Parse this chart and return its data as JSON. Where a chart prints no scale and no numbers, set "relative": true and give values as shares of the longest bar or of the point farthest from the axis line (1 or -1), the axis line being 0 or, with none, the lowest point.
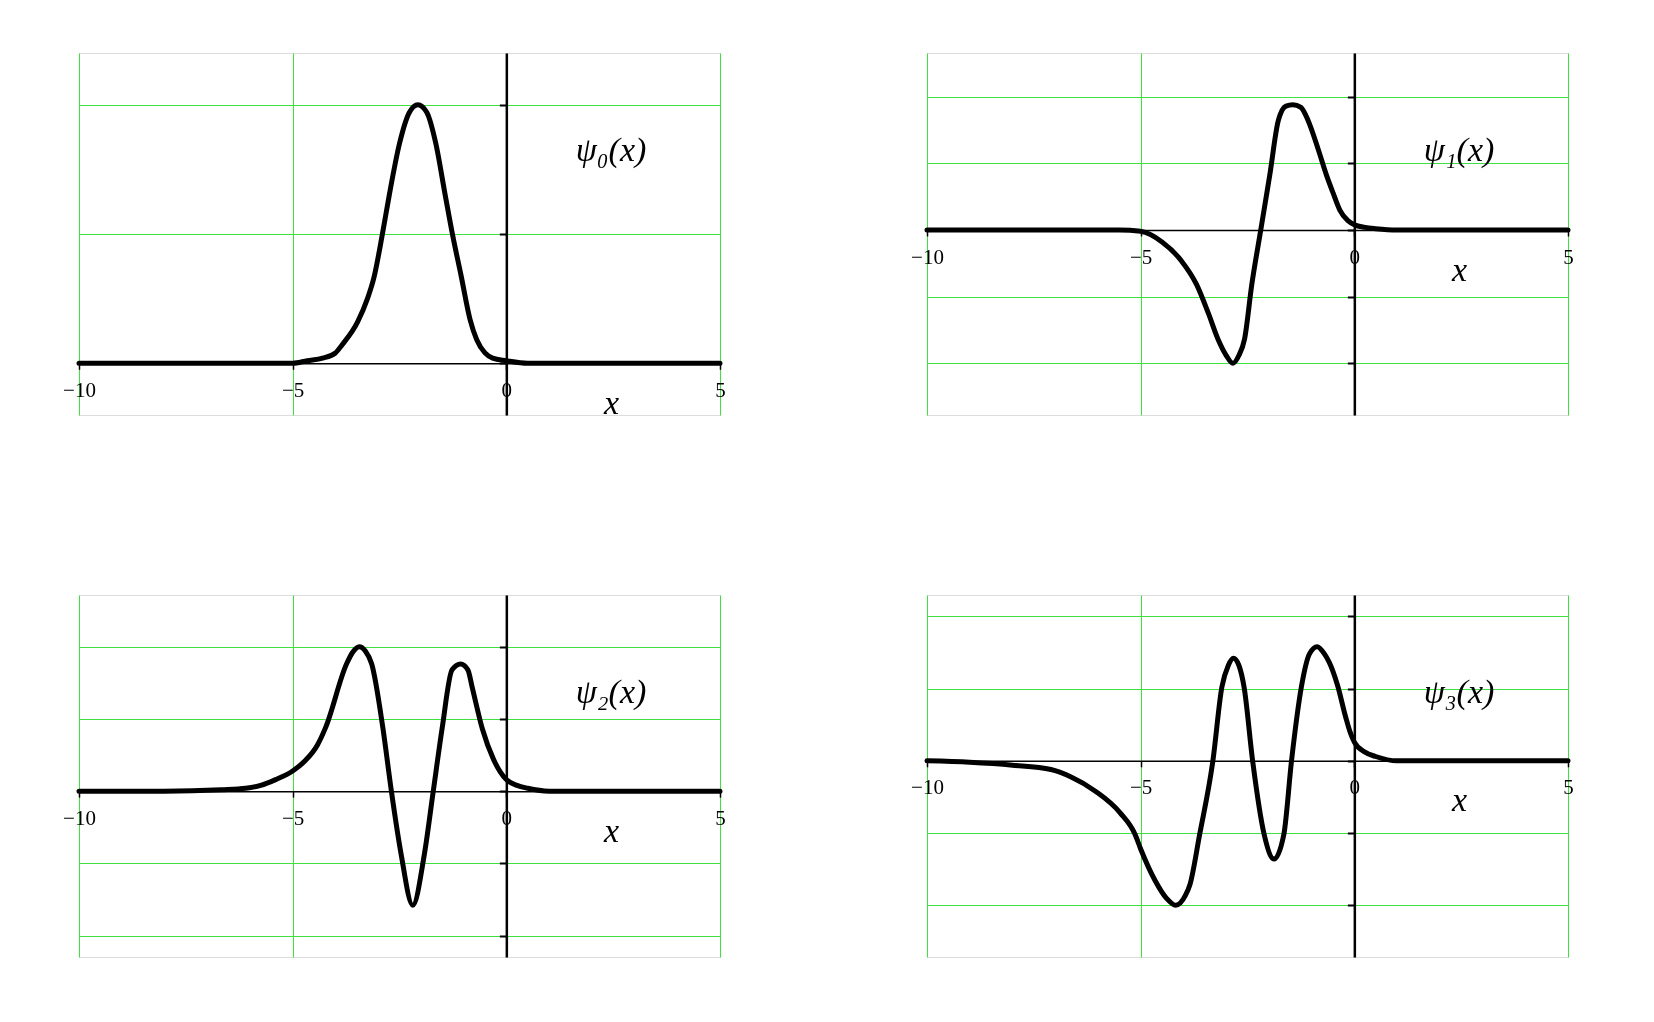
{
  "chart_data": [
    {
      "type": "line",
      "relative": true,
      "xlabel": "x",
      "xlim": [
        -10,
        5
      ],
      "xticks": [
        -10,
        -5,
        0,
        5
      ],
      "grid": true,
      "x": [
        -10,
        -7.5,
        -6,
        -5,
        -4.66,
        -4.3,
        -4,
        -3.85,
        -3.48,
        -3.25,
        -3.1,
        -2.9,
        -2.74,
        -2.5,
        -2.27,
        -2.07,
        -1.86,
        -1.65,
        -1.43,
        -1.25,
        -1.06,
        -0.85,
        -0.69,
        -0.5,
        -0.32,
        0,
        0.5,
        1,
        2.5,
        5
      ],
      "series": [
        {
          "name": "ψ₀(x)",
          "color": "#000000",
          "values": [
            0,
            0,
            0,
            0,
            0.01,
            0.02,
            0.04,
            0.07,
            0.16,
            0.25,
            0.33,
            0.5,
            0.65,
            0.85,
            0.97,
            1,
            0.97,
            0.85,
            0.65,
            0.49,
            0.34,
            0.17,
            0.09,
            0.04,
            0.02,
            0.01,
            0,
            0,
            0,
            0
          ]
        }
      ]
    },
    {
      "type": "line",
      "relative": true,
      "xlabel": "x",
      "xlim": [
        -10,
        5
      ],
      "xticks": [
        -10,
        -5,
        0,
        5
      ],
      "grid": true,
      "x": [
        -10,
        -7.5,
        -6,
        -5.5,
        -5,
        -4.5,
        -4.05,
        -3.69,
        -3.41,
        -3.19,
        -3,
        -2.84,
        -2.7,
        -2.57,
        -2.4,
        -2.19,
        -1.98,
        -1.78,
        -1.6,
        -1.44,
        -1.25,
        -1.08,
        -0.85,
        -0.65,
        -0.5,
        -0.34,
        -0.15,
        0,
        0.25,
        0.5,
        1,
        2.5,
        5
      ],
      "series": [
        {
          "name": "ψ₁(x)",
          "color": "#000000",
          "values": [
            0,
            0,
            0,
            0,
            -0.01,
            -0.09,
            -0.23,
            -0.41,
            -0.63,
            -0.82,
            -0.94,
            -1,
            -0.94,
            -0.82,
            -0.41,
            0,
            0.41,
            0.82,
            0.93,
            0.94,
            0.92,
            0.82,
            0.61,
            0.41,
            0.28,
            0.15,
            0.07,
            0.04,
            0.02,
            0.01,
            0,
            0,
            0
          ]
        }
      ]
    },
    {
      "type": "line",
      "relative": true,
      "xlabel": "x",
      "xlim": [
        -10,
        5
      ],
      "xticks": [
        -10,
        -5,
        0,
        5
      ],
      "grid": true,
      "x": [
        -10,
        -8,
        -6.67,
        -6.1,
        -5.75,
        -5.4,
        -5,
        -4.71,
        -4.42,
        -4.23,
        -3.74,
        -3.6,
        -3.44,
        -3.3,
        -3.15,
        -2.89,
        -2.69,
        -2.46,
        -2.19,
        -1.92,
        -1.71,
        -1.5,
        -1.27,
        -1.07,
        -0.9,
        -0.8,
        -0.56,
        -0.3,
        0,
        0.25,
        0.5,
        1,
        2.5,
        5
      ],
      "series": [
        {
          "name": "ψ₂(x)",
          "color": "#000000",
          "values": [
            0,
            0,
            0.01,
            0.02,
            0.04,
            0.08,
            0.14,
            0.21,
            0.32,
            0.44,
            0.88,
            0.96,
            1,
            0.97,
            0.88,
            0.44,
            0,
            -0.44,
            -0.79,
            -0.44,
            0,
            0.44,
            0.84,
            0.88,
            0.84,
            0.72,
            0.43,
            0.22,
            0.08,
            0.04,
            0.02,
            0,
            0,
            0
          ]
        }
      ]
    },
    {
      "type": "line",
      "relative": true,
      "xlabel": "x",
      "xlim": [
        -10,
        5
      ],
      "xticks": [
        -10,
        -5,
        0,
        5
      ],
      "grid": true,
      "x": [
        -10,
        -9,
        -8,
        -7.1,
        -6.64,
        -6.06,
        -5.48,
        -5.13,
        -5,
        -4.66,
        -4.4,
        -4.18,
        -3.95,
        -3.85,
        -3.62,
        -3.31,
        -3.1,
        -2.95,
        -2.83,
        -2.7,
        -2.58,
        -2.38,
        -2.11,
        -1.88,
        -1.65,
        -1.47,
        -1.24,
        -1.05,
        -0.87,
        -0.7,
        -0.5,
        -0.39,
        -0.2,
        -0.1,
        0,
        0.25,
        0.5,
        1,
        2.5,
        5
      ],
      "series": [
        {
          "name": "ψ₃(x)",
          "color": "#000000",
          "values": [
            0,
            -0.01,
            -0.03,
            -0.06,
            -0.11,
            -0.21,
            -0.36,
            -0.51,
            -0.61,
            -0.83,
            -0.95,
            -1,
            -0.93,
            -0.86,
            -0.51,
            0,
            0.51,
            0.66,
            0.71,
            0.66,
            0.51,
            0,
            -0.51,
            -0.68,
            -0.51,
            0,
            0.51,
            0.74,
            0.79,
            0.74,
            0.62,
            0.52,
            0.3,
            0.2,
            0.13,
            0.06,
            0.03,
            0,
            0,
            0
          ]
        }
      ]
    }
  ]
}
